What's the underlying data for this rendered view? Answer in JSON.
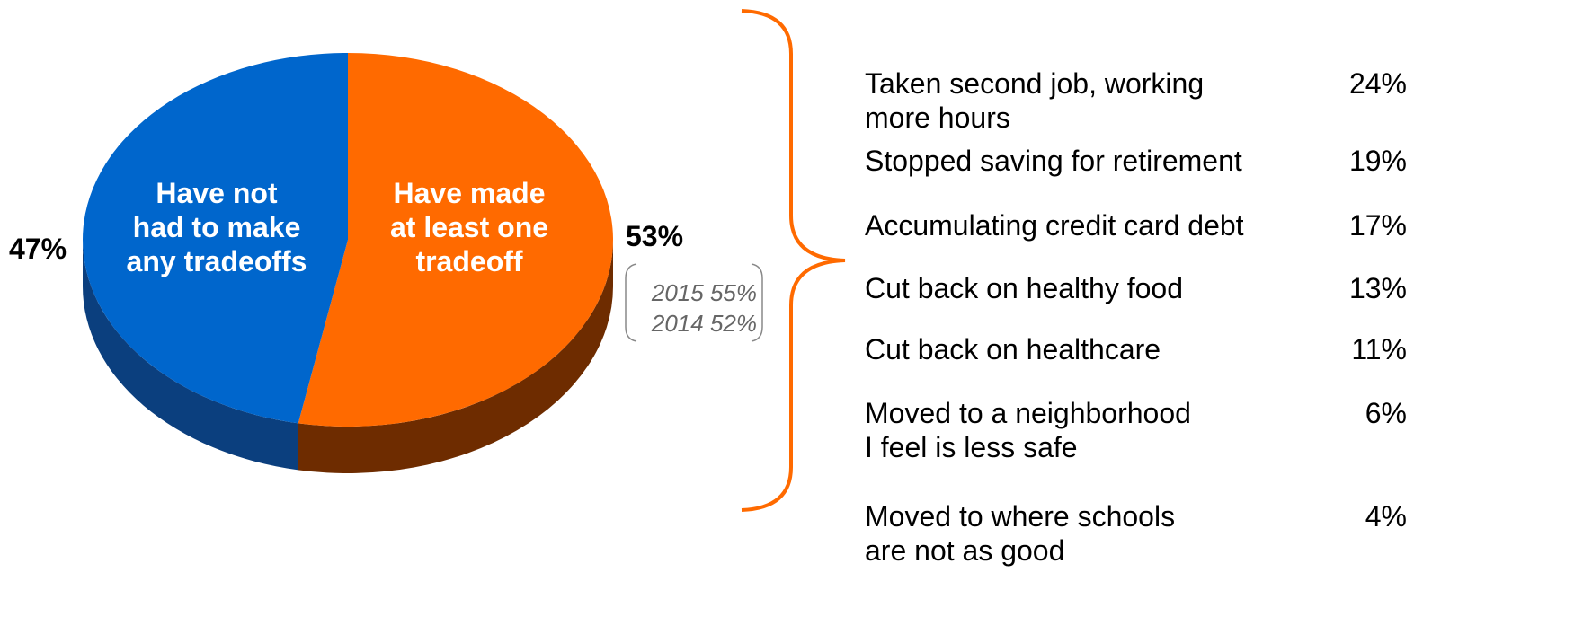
{
  "chart_data": {
    "type": "pie",
    "categories": [
      "Have not\nhad to make\nany tradeoffs",
      "Have made\nat least one\ntradeoff"
    ],
    "values": [
      47,
      53
    ],
    "value_labels": [
      "47%",
      "53%"
    ],
    "colors": [
      "#0066cc",
      "#ff6a00"
    ],
    "side_colors": [
      "#0b3f7e",
      "#6e2c00"
    ],
    "annotations": [
      "2015 55%",
      "2014 52%"
    ]
  },
  "tradeoffs": [
    {
      "label": "Taken second job, working\n more hours",
      "value": "24%"
    },
    {
      "label": "Stopped saving for retirement",
      "value": "19%"
    },
    {
      "label": "Accumulating credit card debt",
      "value": "17%"
    },
    {
      "label": "Cut back on healthy food",
      "value": "13%"
    },
    {
      "label": "Cut back on healthcare",
      "value": "11%"
    },
    {
      "label": "Moved to a neighborhood\nI feel is less safe",
      "value": "6%"
    },
    {
      "label": "Moved to where schools\nare not as good",
      "value": "4%"
    }
  ]
}
